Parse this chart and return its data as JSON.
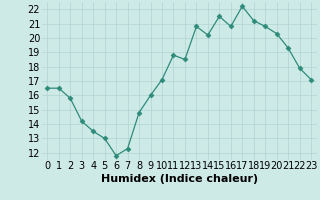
{
  "x": [
    0,
    1,
    2,
    3,
    4,
    5,
    6,
    7,
    8,
    9,
    10,
    11,
    12,
    13,
    14,
    15,
    16,
    17,
    18,
    19,
    20,
    21,
    22,
    23
  ],
  "y": [
    16.5,
    16.5,
    15.8,
    14.2,
    13.5,
    13.0,
    11.8,
    12.3,
    14.8,
    16.0,
    17.1,
    18.8,
    18.5,
    20.8,
    20.2,
    21.5,
    20.8,
    22.2,
    21.2,
    20.8,
    20.3,
    19.3,
    17.9,
    17.1
  ],
  "xlabel": "Humidex (Indice chaleur)",
  "xlim": [
    -0.5,
    23.5
  ],
  "ylim": [
    11.5,
    22.5
  ],
  "yticks": [
    12,
    13,
    14,
    15,
    16,
    17,
    18,
    19,
    20,
    21,
    22
  ],
  "xticks": [
    0,
    1,
    2,
    3,
    4,
    5,
    6,
    7,
    8,
    9,
    10,
    11,
    12,
    13,
    14,
    15,
    16,
    17,
    18,
    19,
    20,
    21,
    22,
    23
  ],
  "line_color": "#2e8b7a",
  "marker": "D",
  "marker_size": 2.5,
  "background_color": "#ceeae7",
  "grid_color": "#b0d4d0",
  "xlabel_fontsize": 8,
  "tick_fontsize": 7
}
